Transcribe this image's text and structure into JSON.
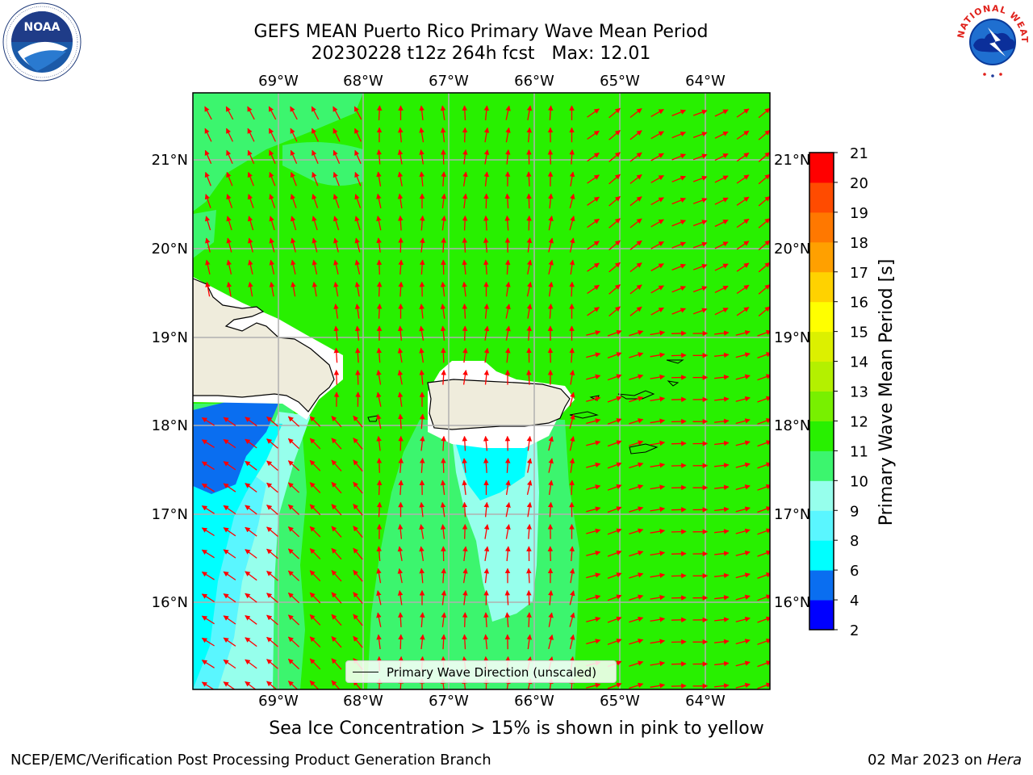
{
  "title": {
    "line1": "GEFS MEAN Puerto Rico Primary Wave Mean Period",
    "run": "20230228 t12z 264h fcst",
    "max": "Max: 12.01"
  },
  "map": {
    "lon_labels": [
      "69°W",
      "68°W",
      "67°W",
      "66°W",
      "65°W",
      "64°W"
    ],
    "lat_labels": [
      "21°N",
      "20°N",
      "19°N",
      "18°N",
      "17°N",
      "16°N"
    ],
    "legend_label": "Primary Wave Direction (unscaled)",
    "arrow_color": "#ff0000",
    "land_color": "#efecdc"
  },
  "colorbar": {
    "label": "Primary Wave Mean Period [s]",
    "ticks": [
      "2",
      "4",
      "6",
      "8",
      "9",
      "10",
      "11",
      "12",
      "13",
      "14",
      "15",
      "16",
      "17",
      "18",
      "19",
      "20",
      "21"
    ],
    "colors": [
      "#0000ff",
      "#0a6ef0",
      "#00ffff",
      "#5af6ff",
      "#96ffec",
      "#3cf56e",
      "#28f000",
      "#78f000",
      "#b4f000",
      "#dcf000",
      "#ffff00",
      "#ffd200",
      "#ffa000",
      "#ff7800",
      "#ff4b00",
      "#ff0000"
    ]
  },
  "ice_note": "Sea Ice Concentration > 15% is shown in pink to yellow",
  "footer": {
    "left": "NCEP/EMC/Verification Post Processing Product Generation Branch",
    "date": "02 Mar 2023 on",
    "machine": "Hera"
  },
  "logos": {
    "noaa": "NOAA",
    "nws_text": "NATIONAL WEATHER SERVICE"
  }
}
